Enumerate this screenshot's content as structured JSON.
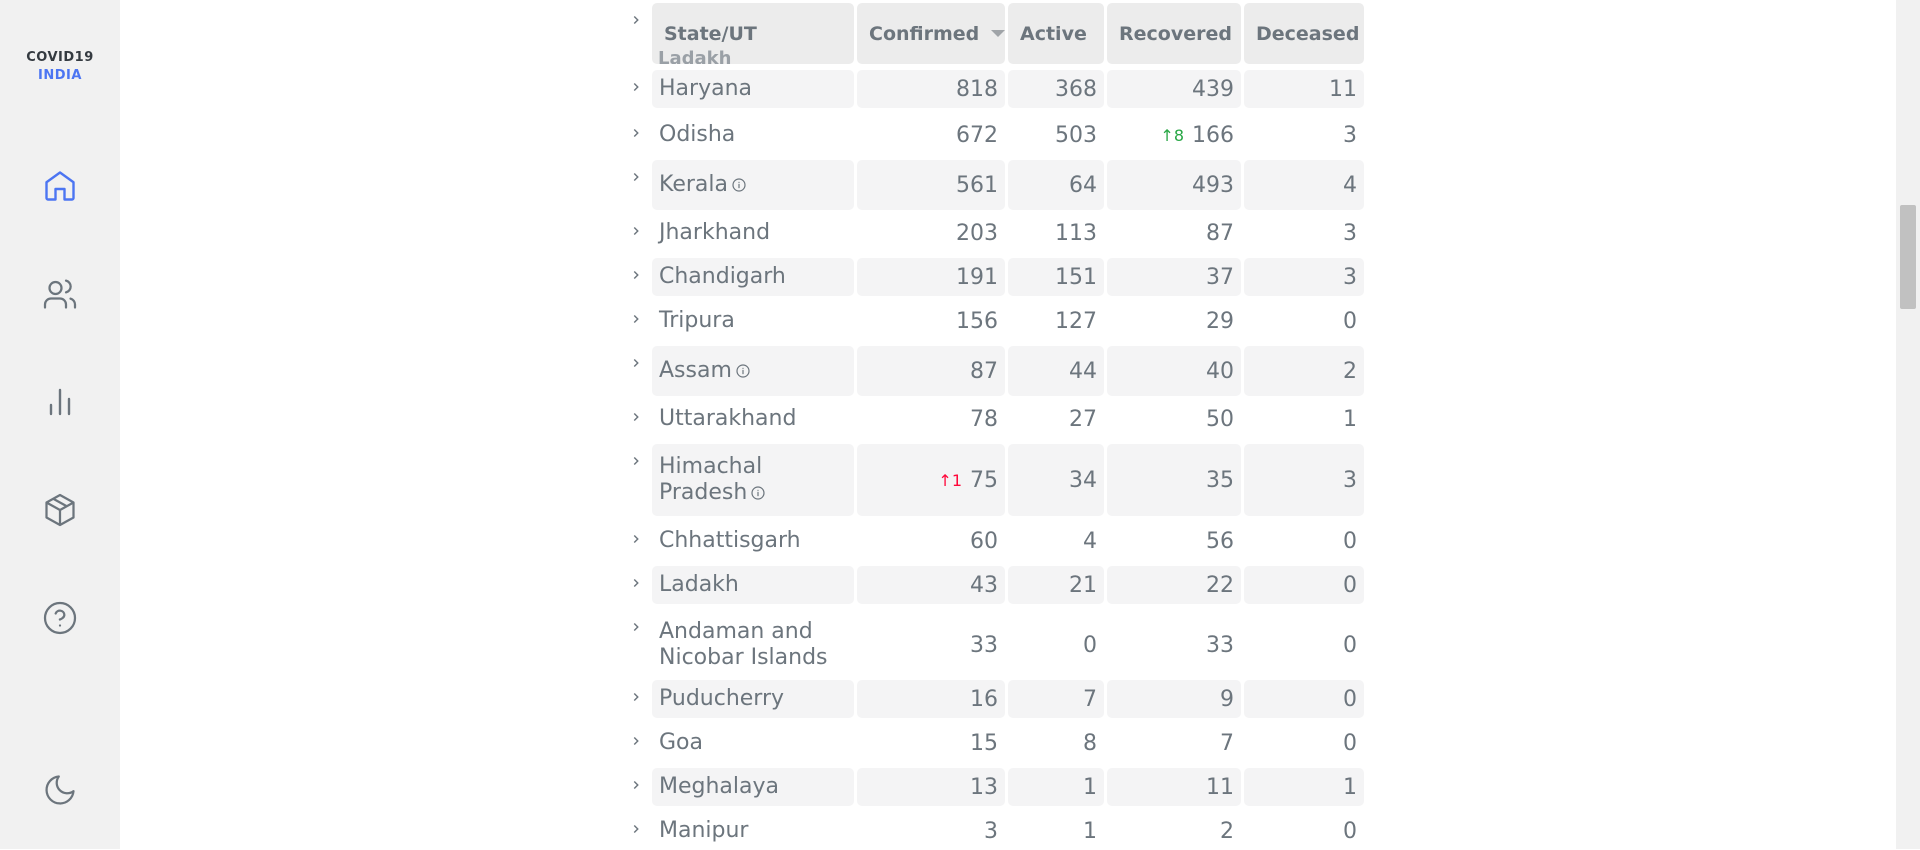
{
  "brand": {
    "line1": "COVID19",
    "line2": "INDIA",
    "accent": "#4c75f2"
  },
  "nav": [
    {
      "icon": "home-icon",
      "active": true
    },
    {
      "icon": "users-icon",
      "active": false
    },
    {
      "icon": "bar-chart-icon",
      "active": false
    },
    {
      "icon": "package-icon",
      "active": false
    },
    {
      "icon": "help-circle-icon",
      "active": false
    },
    {
      "icon": "moon-icon",
      "active": false
    }
  ],
  "table": {
    "headers": {
      "state": "State/UT",
      "confirmed": "Confirmed",
      "active": "Active",
      "recovered": "Recovered",
      "deceased": "Deceased"
    },
    "header_ghost": "Ladakh",
    "rows": [
      {
        "state": "Haryana",
        "confirmed": "818",
        "active": "368",
        "recovered": "439",
        "deceased": "11"
      },
      {
        "state": "Odisha",
        "confirmed": "672",
        "active": "503",
        "recovered": "166",
        "recovered_delta": "↑8",
        "deceased": "3"
      },
      {
        "state": "Kerala",
        "info": true,
        "confirmed": "561",
        "active": "64",
        "recovered": "493",
        "deceased": "4"
      },
      {
        "state": "Jharkhand",
        "confirmed": "203",
        "active": "113",
        "recovered": "87",
        "deceased": "3"
      },
      {
        "state": "Chandigarh",
        "confirmed": "191",
        "active": "151",
        "recovered": "37",
        "deceased": "3"
      },
      {
        "state": "Tripura",
        "confirmed": "156",
        "active": "127",
        "recovered": "29",
        "deceased": "0"
      },
      {
        "state": "Assam",
        "info": true,
        "confirmed": "87",
        "active": "44",
        "recovered": "40",
        "deceased": "2"
      },
      {
        "state": "Uttarakhand",
        "confirmed": "78",
        "active": "27",
        "recovered": "50",
        "deceased": "1"
      },
      {
        "state_line1": "Himachal",
        "state_line2": "Pradesh",
        "info": true,
        "confirmed": "75",
        "confirmed_delta": "↑1",
        "active": "34",
        "recovered": "35",
        "deceased": "3"
      },
      {
        "state": "Chhattisgarh",
        "confirmed": "60",
        "active": "4",
        "recovered": "56",
        "deceased": "0"
      },
      {
        "state": "Ladakh",
        "confirmed": "43",
        "active": "21",
        "recovered": "22",
        "deceased": "0"
      },
      {
        "state_line1": "Andaman and",
        "state_line2": "Nicobar Islands",
        "confirmed": "33",
        "active": "0",
        "recovered": "33",
        "deceased": "0"
      },
      {
        "state": "Puducherry",
        "confirmed": "16",
        "active": "7",
        "recovered": "9",
        "deceased": "0"
      },
      {
        "state": "Goa",
        "confirmed": "15",
        "active": "8",
        "recovered": "7",
        "deceased": "0"
      },
      {
        "state": "Meghalaya",
        "confirmed": "13",
        "active": "1",
        "recovered": "11",
        "deceased": "1"
      },
      {
        "state": "Manipur",
        "confirmed": "3",
        "active": "1",
        "recovered": "2",
        "deceased": "0"
      }
    ]
  }
}
